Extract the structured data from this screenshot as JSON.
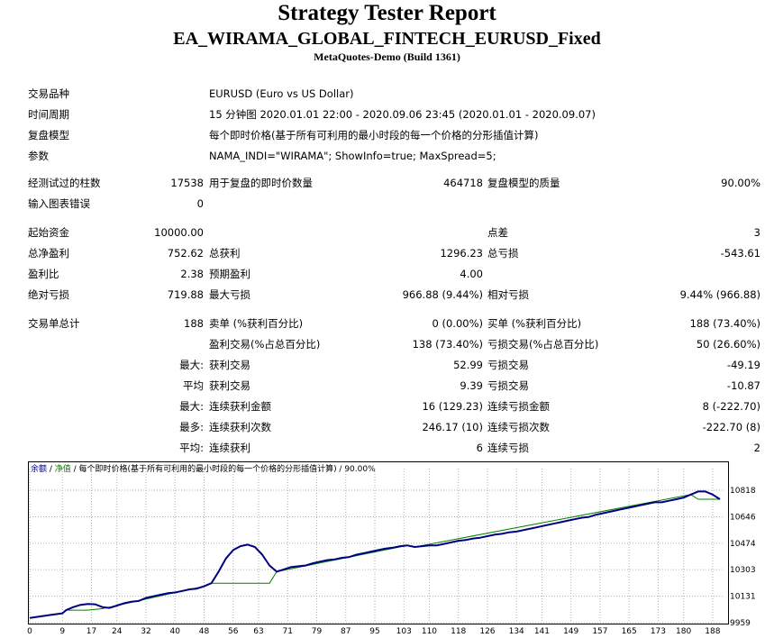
{
  "header": {
    "title": "Strategy Tester Report",
    "ea_name": "EA_WIRAMA_GLOBAL_FINTECH_EURUSD_Fixed",
    "build": "MetaQuotes-Demo (Build 1361)"
  },
  "settings": {
    "symbol_label": "交易品种",
    "symbol_value": "EURUSD (Euro vs US Dollar)",
    "period_label": "时间周期",
    "period_value": "15 分钟图 2020.01.01 22:00 - 2020.09.06 23:45 (2020.01.01 - 2020.09.07)",
    "model_label": "复盘模型",
    "model_value": "每个即时价格(基于所有可利用的最小时段的每一个价格的分形插值计算)",
    "params_label": "参数",
    "params_value": "NAMA_INDI=\"WIRAMA\"; ShowInfo=true; MaxSpread=5;"
  },
  "quality": {
    "bars_label": "经测试过的柱数",
    "bars_value": "17538",
    "ticks_label": "用于复盘的即时价数量",
    "ticks_value": "464718",
    "quality_label": "复盘模型的质量",
    "quality_value": "90.00%",
    "errors_label": "输入图表错误",
    "errors_value": "0"
  },
  "results": {
    "initial_label": "起始资金",
    "initial_value": "10000.00",
    "spread_label": "点差",
    "spread_value": "3",
    "net_label": "总净盈利",
    "net_value": "752.62",
    "gross_profit_label": "总获利",
    "gross_profit_value": "1296.23",
    "gross_loss_label": "总亏损",
    "gross_loss_value": "-543.61",
    "pf_label": "盈利比",
    "pf_value": "2.38",
    "payoff_label": "预期盈利",
    "payoff_value": "4.00",
    "abs_dd_label": "绝对亏损",
    "abs_dd_value": "719.88",
    "max_dd_label": "最大亏损",
    "max_dd_value": "966.88 (9.44%)",
    "rel_dd_label": "相对亏损",
    "rel_dd_value": "9.44% (966.88)"
  },
  "trades": {
    "total_label": "交易单总计",
    "total_value": "188",
    "short_label": "卖单 (%获利百分比)",
    "short_value": "0 (0.00%)",
    "long_label": "买单 (%获利百分比)",
    "long_value": "188 (73.40%)",
    "profit_trades_label": "盈利交易(%占总百分比)",
    "profit_trades_value": "138 (73.40%)",
    "loss_trades_label": "亏损交易(%占总百分比)",
    "loss_trades_value": "50 (26.60%)",
    "largest_prefix": "最大:",
    "largest_profit_label": "获利交易",
    "largest_profit_value": "52.99",
    "largest_loss_label": "亏损交易",
    "largest_loss_value": "-49.19",
    "average_prefix": "平均",
    "average_profit_label": "获利交易",
    "average_profit_value": "9.39",
    "average_loss_label": "亏损交易",
    "average_loss_value": "-10.87",
    "max_consec_prefix": "最大:",
    "max_consec_wins_label": "连续获利金额",
    "max_consec_wins_value": "16 (129.23)",
    "max_consec_losses_label": "连续亏损金额",
    "max_consec_losses_value": "8 (-222.70)",
    "maximal_prefix": "最多:",
    "maximal_wins_label": "连续获利次数",
    "maximal_wins_value": "246.17 (10)",
    "maximal_losses_label": "连续亏损次数",
    "maximal_losses_value": "-222.70 (8)",
    "avg_consec_prefix": "平均:",
    "avg_consec_wins_label": "连续获利",
    "avg_consec_wins_value": "6",
    "avg_consec_losses_label": "连续亏损",
    "avg_consec_losses_value": "2"
  },
  "chart_legend": {
    "balance": "余额",
    "sep1": " / ",
    "equity": "净值",
    "rest": " / 每个即时价格(基于所有可利用的最小时段的每一个价格的分形插值计算) / 90.00%"
  },
  "chart_data": {
    "type": "line",
    "ylim": [
      9959,
      10900
    ],
    "xlim": [
      0,
      191
    ],
    "y_ticks": [
      "10818",
      "10646",
      "10474",
      "10303",
      "10131",
      "9959"
    ],
    "x_ticks": [
      "0",
      "9",
      "17",
      "24",
      "32",
      "40",
      "48",
      "56",
      "63",
      "71",
      "79",
      "87",
      "95",
      "103",
      "110",
      "118",
      "126",
      "134",
      "141",
      "149",
      "157",
      "165",
      "173",
      "180",
      "188"
    ],
    "grid": true,
    "colors": {
      "balance": "#000080",
      "equity": "#008000"
    },
    "series": [
      {
        "name": "余额",
        "points": [
          [
            0,
            9990
          ],
          [
            3,
            10000
          ],
          [
            6,
            10010
          ],
          [
            9,
            10020
          ],
          [
            10,
            10040
          ],
          [
            12,
            10060
          ],
          [
            14,
            10075
          ],
          [
            16,
            10080
          ],
          [
            18,
            10078
          ],
          [
            20,
            10060
          ],
          [
            22,
            10055
          ],
          [
            24,
            10070
          ],
          [
            26,
            10085
          ],
          [
            28,
            10095
          ],
          [
            30,
            10100
          ],
          [
            32,
            10120
          ],
          [
            34,
            10130
          ],
          [
            36,
            10140
          ],
          [
            38,
            10150
          ],
          [
            40,
            10155
          ],
          [
            42,
            10165
          ],
          [
            44,
            10175
          ],
          [
            46,
            10180
          ],
          [
            48,
            10195
          ],
          [
            50,
            10215
          ],
          [
            52,
            10290
          ],
          [
            54,
            10375
          ],
          [
            56,
            10430
          ],
          [
            58,
            10455
          ],
          [
            60,
            10465
          ],
          [
            62,
            10450
          ],
          [
            64,
            10400
          ],
          [
            66,
            10330
          ],
          [
            68,
            10290
          ],
          [
            70,
            10305
          ],
          [
            72,
            10320
          ],
          [
            74,
            10325
          ],
          [
            76,
            10330
          ],
          [
            78,
            10345
          ],
          [
            80,
            10355
          ],
          [
            82,
            10365
          ],
          [
            84,
            10370
          ],
          [
            86,
            10380
          ],
          [
            88,
            10385
          ],
          [
            90,
            10400
          ],
          [
            92,
            10410
          ],
          [
            94,
            10420
          ],
          [
            96,
            10430
          ],
          [
            98,
            10440
          ],
          [
            100,
            10445
          ],
          [
            102,
            10455
          ],
          [
            104,
            10460
          ],
          [
            106,
            10450
          ],
          [
            108,
            10455
          ],
          [
            110,
            10460
          ],
          [
            112,
            10460
          ],
          [
            114,
            10470
          ],
          [
            116,
            10480
          ],
          [
            118,
            10490
          ],
          [
            120,
            10495
          ],
          [
            122,
            10505
          ],
          [
            124,
            10510
          ],
          [
            126,
            10520
          ],
          [
            128,
            10530
          ],
          [
            130,
            10535
          ],
          [
            132,
            10545
          ],
          [
            134,
            10550
          ],
          [
            136,
            10560
          ],
          [
            138,
            10570
          ],
          [
            140,
            10580
          ],
          [
            142,
            10590
          ],
          [
            144,
            10600
          ],
          [
            146,
            10610
          ],
          [
            148,
            10620
          ],
          [
            150,
            10630
          ],
          [
            152,
            10640
          ],
          [
            154,
            10645
          ],
          [
            156,
            10660
          ],
          [
            158,
            10670
          ],
          [
            160,
            10680
          ],
          [
            162,
            10690
          ],
          [
            164,
            10700
          ],
          [
            166,
            10710
          ],
          [
            168,
            10720
          ],
          [
            170,
            10730
          ],
          [
            172,
            10740
          ],
          [
            174,
            10740
          ],
          [
            176,
            10750
          ],
          [
            178,
            10760
          ],
          [
            180,
            10770
          ],
          [
            182,
            10790
          ],
          [
            184,
            10810
          ],
          [
            186,
            10810
          ],
          [
            188,
            10790
          ],
          [
            190,
            10760
          ]
        ]
      },
      {
        "name": "净值",
        "points": [
          [
            0,
            9990
          ],
          [
            9,
            10020
          ],
          [
            10,
            10040
          ],
          [
            12,
            10040
          ],
          [
            16,
            10040
          ],
          [
            20,
            10050
          ],
          [
            24,
            10070
          ],
          [
            44,
            10175
          ],
          [
            48,
            10195
          ],
          [
            50,
            10215
          ],
          [
            64,
            10215
          ],
          [
            66,
            10215
          ],
          [
            68,
            10290
          ],
          [
            104,
            10460
          ],
          [
            106,
            10450
          ],
          [
            182,
            10790
          ],
          [
            184,
            10760
          ],
          [
            190,
            10760
          ]
        ]
      }
    ]
  }
}
